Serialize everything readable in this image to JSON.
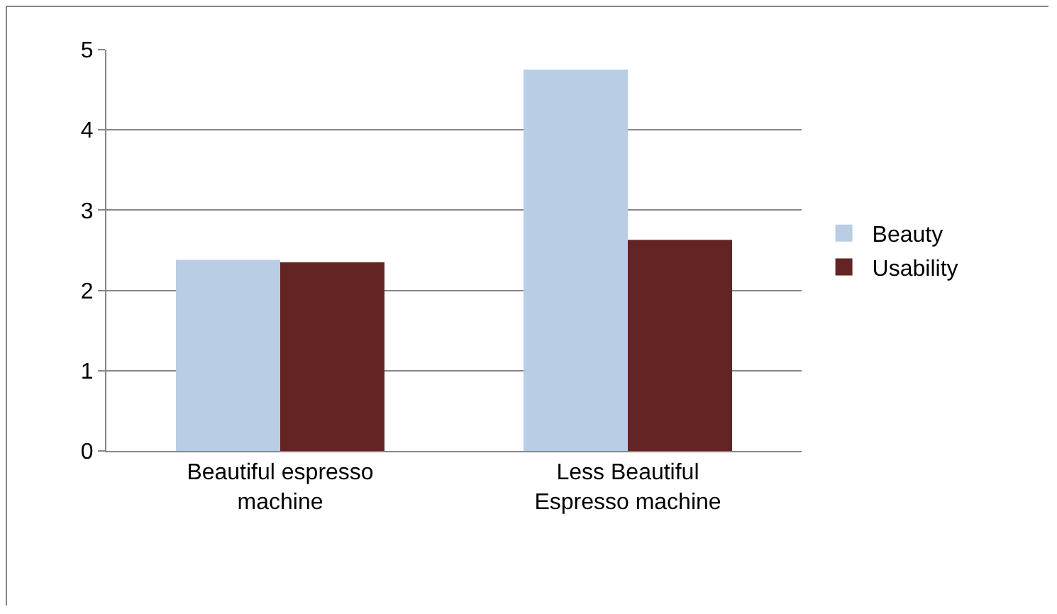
{
  "chart_data": {
    "type": "bar",
    "categories": [
      "Beautiful espresso machine",
      "Less Beautiful Espresso machine"
    ],
    "series": [
      {
        "name": "Beauty",
        "color": "#b9cde5",
        "values": [
          2.38,
          4.75
        ]
      },
      {
        "name": "Usability",
        "color": "#632523",
        "values": [
          2.35,
          2.63
        ]
      }
    ],
    "ylim": [
      0,
      5
    ],
    "yticks": [
      0,
      1,
      2,
      3,
      4,
      5
    ],
    "grid": "y",
    "legend": "right"
  }
}
